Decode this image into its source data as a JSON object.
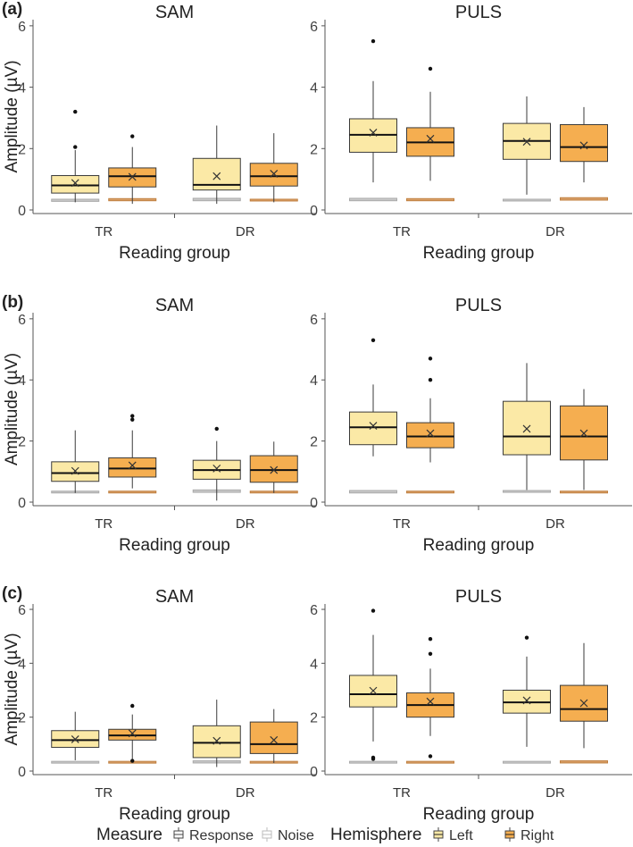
{
  "chart_data": {
    "type": "boxplot",
    "y_axis": {
      "label": "Amplitude (µV)",
      "range": [
        0,
        6.2
      ],
      "ticks": [
        0,
        2,
        4,
        6
      ]
    },
    "x_axis": {
      "label": "Reading group",
      "categories": [
        "TR",
        "DR"
      ]
    },
    "panel_titles": [
      "SAM",
      "PULS"
    ],
    "panel_tags": [
      "(a)",
      "(b)",
      "(c)"
    ],
    "legend": {
      "position": "bottom",
      "measure_title": "Measure",
      "measure_items": [
        "Response",
        "Noise"
      ],
      "hemisphere_title": "Hemisphere",
      "hemisphere_items": [
        "Left",
        "Right"
      ]
    },
    "colors": {
      "left": "#fbe9a6",
      "right": "#f5ae50",
      "noise_left": "#c8c8c8",
      "noise_right": "#d9a06a",
      "outline": "#3a3a3a",
      "axis": "#555555"
    },
    "panels": [
      {
        "tag": "(a)",
        "title": "SAM",
        "boxes": [
          {
            "group": "TR",
            "hemisphere": "Left",
            "whisker_low": 0.25,
            "q1": 0.55,
            "median": 0.8,
            "q3": 1.12,
            "whisker_high": 1.95,
            "mean": 0.88,
            "outliers": [
              2.05,
              3.2
            ],
            "noise": [
              0.28,
              0.35
            ]
          },
          {
            "group": "TR",
            "hemisphere": "Right",
            "whisker_low": 0.2,
            "q1": 0.75,
            "median": 1.1,
            "q3": 1.37,
            "whisker_high": 2.05,
            "mean": 1.08,
            "outliers": [
              2.4
            ],
            "noise": [
              0.3,
              0.37
            ]
          },
          {
            "group": "DR",
            "hemisphere": "Left",
            "whisker_low": 0.2,
            "q1": 0.65,
            "median": 0.82,
            "q3": 1.68,
            "whisker_high": 2.75,
            "mean": 1.1,
            "outliers": [],
            "noise": [
              0.3,
              0.38
            ]
          },
          {
            "group": "DR",
            "hemisphere": "Right",
            "whisker_low": 0.25,
            "q1": 0.78,
            "median": 1.1,
            "q3": 1.52,
            "whisker_high": 2.5,
            "mean": 1.18,
            "outliers": [],
            "noise": [
              0.3,
              0.35
            ]
          }
        ]
      },
      {
        "tag": "(a)",
        "title": "PULS",
        "boxes": [
          {
            "group": "TR",
            "hemisphere": "Left",
            "whisker_low": 0.9,
            "q1": 1.88,
            "median": 2.45,
            "q3": 2.97,
            "whisker_high": 4.2,
            "mean": 2.52,
            "outliers": [
              5.5
            ],
            "noise": [
              0.3,
              0.38
            ]
          },
          {
            "group": "TR",
            "hemisphere": "Right",
            "whisker_low": 0.95,
            "q1": 1.75,
            "median": 2.2,
            "q3": 2.68,
            "whisker_high": 3.85,
            "mean": 2.32,
            "outliers": [
              4.6
            ],
            "noise": [
              0.3,
              0.37
            ]
          },
          {
            "group": "DR",
            "hemisphere": "Left",
            "whisker_low": 0.5,
            "q1": 1.65,
            "median": 2.25,
            "q3": 2.82,
            "whisker_high": 3.7,
            "mean": 2.22,
            "outliers": [],
            "noise": [
              0.3,
              0.35
            ]
          },
          {
            "group": "DR",
            "hemisphere": "Right",
            "whisker_low": 0.9,
            "q1": 1.58,
            "median": 2.05,
            "q3": 2.78,
            "whisker_high": 3.35,
            "mean": 2.1,
            "outliers": [],
            "noise": [
              0.32,
              0.4
            ]
          }
        ]
      },
      {
        "tag": "(b)",
        "title": "SAM",
        "boxes": [
          {
            "group": "TR",
            "hemisphere": "Left",
            "whisker_low": 0.3,
            "q1": 0.68,
            "median": 0.95,
            "q3": 1.32,
            "whisker_high": 2.35,
            "mean": 1.02,
            "outliers": [],
            "noise": [
              0.3,
              0.36
            ]
          },
          {
            "group": "TR",
            "hemisphere": "Right",
            "whisker_low": 0.45,
            "q1": 0.82,
            "median": 1.1,
            "q3": 1.45,
            "whisker_high": 2.35,
            "mean": 1.2,
            "outliers": [
              2.7,
              2.82
            ],
            "noise": [
              0.3,
              0.36
            ]
          },
          {
            "group": "DR",
            "hemisphere": "Left",
            "whisker_low": 0.05,
            "q1": 0.75,
            "median": 1.05,
            "q3": 1.37,
            "whisker_high": 2.0,
            "mean": 1.1,
            "outliers": [
              2.4
            ],
            "noise": [
              0.32,
              0.4
            ]
          },
          {
            "group": "DR",
            "hemisphere": "Right",
            "whisker_low": 0.3,
            "q1": 0.65,
            "median": 1.05,
            "q3": 1.52,
            "whisker_high": 1.98,
            "mean": 1.05,
            "outliers": [],
            "noise": [
              0.3,
              0.36
            ]
          }
        ]
      },
      {
        "tag": "(b)",
        "title": "PULS",
        "boxes": [
          {
            "group": "TR",
            "hemisphere": "Left",
            "whisker_low": 1.5,
            "q1": 1.88,
            "median": 2.45,
            "q3": 2.95,
            "whisker_high": 3.85,
            "mean": 2.5,
            "outliers": [
              5.3
            ],
            "noise": [
              0.3,
              0.38
            ]
          },
          {
            "group": "TR",
            "hemisphere": "Right",
            "whisker_low": 1.3,
            "q1": 1.78,
            "median": 2.15,
            "q3": 2.6,
            "whisker_high": 3.4,
            "mean": 2.25,
            "outliers": [
              4.0,
              4.7
            ],
            "noise": [
              0.3,
              0.36
            ]
          },
          {
            "group": "DR",
            "hemisphere": "Left",
            "whisker_low": 0.4,
            "q1": 1.55,
            "median": 2.15,
            "q3": 3.3,
            "whisker_high": 4.55,
            "mean": 2.4,
            "outliers": [],
            "noise": [
              0.32,
              0.38
            ]
          },
          {
            "group": "DR",
            "hemisphere": "Right",
            "whisker_low": 0.4,
            "q1": 1.38,
            "median": 2.15,
            "q3": 3.15,
            "whisker_high": 3.7,
            "mean": 2.25,
            "outliers": [],
            "noise": [
              0.3,
              0.36
            ]
          }
        ]
      },
      {
        "tag": "(c)",
        "title": "SAM",
        "boxes": [
          {
            "group": "TR",
            "hemisphere": "Left",
            "whisker_low": 0.4,
            "q1": 0.88,
            "median": 1.15,
            "q3": 1.5,
            "whisker_high": 2.2,
            "mean": 1.18,
            "outliers": [],
            "noise": [
              0.3,
              0.36
            ]
          },
          {
            "group": "TR",
            "hemisphere": "Right",
            "whisker_low": 0.45,
            "q1": 1.15,
            "median": 1.32,
            "q3": 1.55,
            "whisker_high": 2.1,
            "mean": 1.4,
            "outliers": [
              0.38,
              2.42
            ],
            "noise": [
              0.3,
              0.36
            ]
          },
          {
            "group": "DR",
            "hemisphere": "Left",
            "whisker_low": 0.15,
            "q1": 0.5,
            "median": 1.05,
            "q3": 1.68,
            "whisker_high": 2.65,
            "mean": 1.12,
            "outliers": [],
            "noise": [
              0.3,
              0.38
            ]
          },
          {
            "group": "DR",
            "hemisphere": "Right",
            "whisker_low": 0.3,
            "q1": 0.65,
            "median": 1.0,
            "q3": 1.82,
            "whisker_high": 2.3,
            "mean": 1.15,
            "outliers": [],
            "noise": [
              0.3,
              0.36
            ]
          }
        ]
      },
      {
        "tag": "(c)",
        "title": "PULS",
        "boxes": [
          {
            "group": "TR",
            "hemisphere": "Left",
            "whisker_low": 1.1,
            "q1": 2.38,
            "median": 2.85,
            "q3": 3.55,
            "whisker_high": 5.05,
            "mean": 2.98,
            "outliers": [
              0.45,
              0.5,
              5.95
            ],
            "noise": [
              0.3,
              0.36
            ]
          },
          {
            "group": "TR",
            "hemisphere": "Right",
            "whisker_low": 1.3,
            "q1": 2.0,
            "median": 2.45,
            "q3": 2.9,
            "whisker_high": 3.8,
            "mean": 2.58,
            "outliers": [
              0.55,
              4.35,
              4.9
            ],
            "noise": [
              0.3,
              0.36
            ]
          },
          {
            "group": "DR",
            "hemisphere": "Left",
            "whisker_low": 0.9,
            "q1": 2.15,
            "median": 2.55,
            "q3": 3.0,
            "whisker_high": 4.25,
            "mean": 2.62,
            "outliers": [
              4.95
            ],
            "noise": [
              0.3,
              0.36
            ]
          },
          {
            "group": "DR",
            "hemisphere": "Right",
            "whisker_low": 0.85,
            "q1": 1.85,
            "median": 2.3,
            "q3": 3.18,
            "whisker_high": 4.75,
            "mean": 2.52,
            "outliers": [],
            "noise": [
              0.3,
              0.38
            ]
          }
        ]
      }
    ]
  }
}
